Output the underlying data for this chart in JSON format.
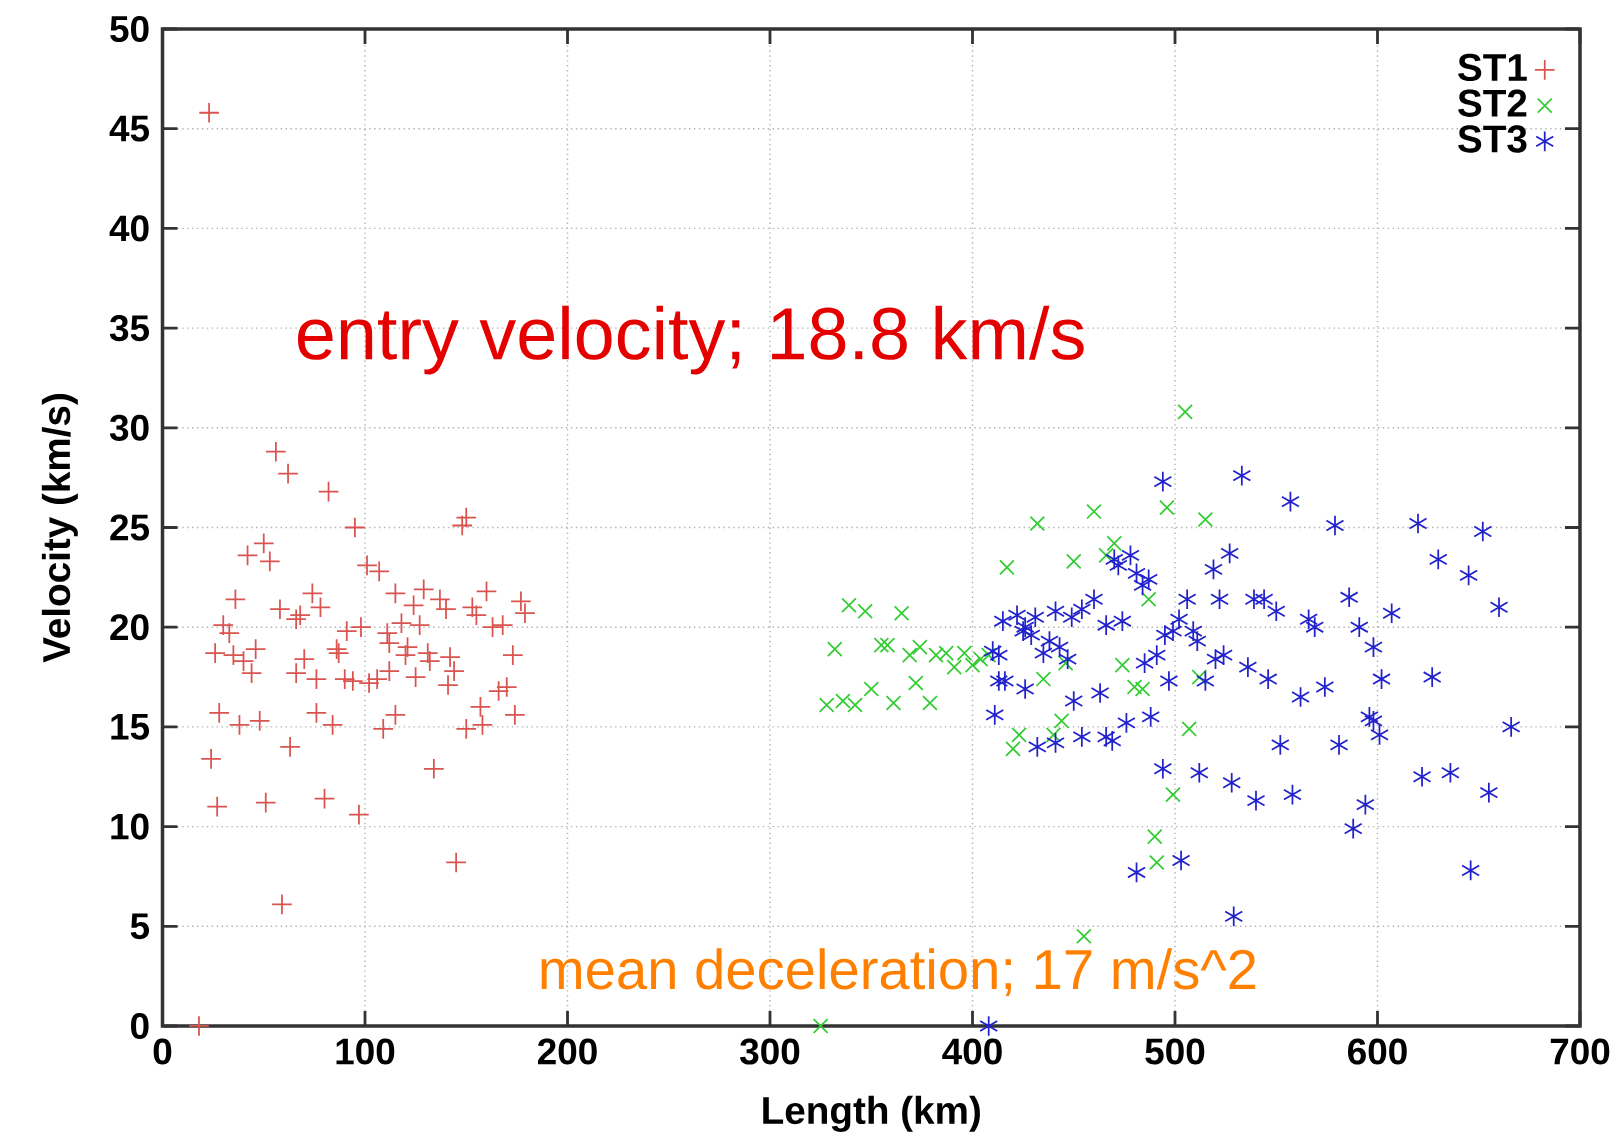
{
  "chart_data": {
    "type": "scatter",
    "xlabel": "Length (km)",
    "ylabel": "Velocity (km/s)",
    "xlim": [
      0,
      700
    ],
    "ylim": [
      0,
      50
    ],
    "xticks": [
      0,
      100,
      200,
      300,
      400,
      500,
      600,
      700
    ],
    "yticks": [
      0,
      5,
      10,
      15,
      20,
      25,
      30,
      35,
      40,
      45,
      50
    ],
    "grid": true,
    "legend": "top right",
    "annotations": [
      "entry velocity; 18.8 km/s",
      "mean deceleration; 17 m/s^2"
    ],
    "series": [
      {
        "name": "ST1",
        "color": "#d9534f",
        "x": [
          23,
          18,
          56,
          62,
          82,
          95,
          148,
          150,
          50,
          53,
          42,
          101,
          107,
          74,
          115,
          129,
          160,
          36,
          78,
          58,
          68,
          66,
          124,
          137,
          140,
          153,
          155,
          177,
          179,
          168,
          163,
          30,
          33,
          98,
          91,
          118,
          127,
          26,
          35,
          40,
          44,
          46,
          70,
          86,
          87,
          111,
          112,
          121,
          120,
          131,
          132,
          142,
          144,
          173,
          66,
          76,
          90,
          94,
          102,
          106,
          112,
          125,
          141,
          166,
          170,
          157,
          28,
          38,
          48,
          76,
          84,
          115,
          109,
          150,
          158,
          174,
          63,
          24,
          134,
          27,
          51,
          80,
          97,
          145,
          59
        ],
        "values": [
          45.8,
          0,
          28.8,
          27.7,
          26.8,
          25.0,
          25.1,
          25.5,
          24.2,
          23.3,
          23.6,
          23.1,
          22.8,
          21.7,
          21.7,
          21.9,
          21.8,
          21.4,
          21.0,
          20.9,
          20.6,
          20.4,
          21.1,
          21.4,
          20.9,
          21.0,
          20.6,
          21.3,
          20.7,
          20.1,
          20.0,
          20.1,
          19.7,
          20.0,
          19.8,
          20.2,
          20.1,
          18.7,
          18.6,
          18.3,
          17.7,
          18.9,
          18.4,
          18.9,
          18.7,
          19.7,
          19.2,
          19.0,
          18.6,
          18.7,
          18.3,
          18.5,
          17.8,
          18.6,
          17.7,
          17.4,
          17.4,
          17.3,
          17.2,
          17.4,
          17.8,
          17.5,
          17.1,
          16.8,
          17.0,
          16.0,
          15.7,
          15.1,
          15.3,
          15.7,
          15.1,
          15.6,
          14.9,
          14.9,
          15.1,
          15.6,
          14.0,
          13.4,
          12.9,
          11.0,
          11.2,
          11.4,
          10.6,
          8.2,
          6.1
        ]
      },
      {
        "name": "ST2",
        "color": "#33cc33",
        "x": [
          505,
          460,
          496,
          432,
          515,
          470,
          450,
          417,
          466,
          487,
          339,
          347,
          365,
          332,
          355,
          358,
          369,
          374,
          382,
          387,
          391,
          396,
          400,
          404,
          408,
          372,
          350,
          328,
          336,
          342,
          361,
          379,
          435,
          446,
          474,
          480,
          484,
          512,
          444,
          440,
          423,
          420,
          507,
          499,
          490,
          491,
          455,
          325
        ],
        "values": [
          30.8,
          25.8,
          26.0,
          25.2,
          25.4,
          24.2,
          23.3,
          23.0,
          23.6,
          21.4,
          21.1,
          20.8,
          20.7,
          18.9,
          19.1,
          19.1,
          18.6,
          19.0,
          18.6,
          18.7,
          18.0,
          18.7,
          18.1,
          18.4,
          18.6,
          17.2,
          16.9,
          16.1,
          16.3,
          16.1,
          16.2,
          16.2,
          17.4,
          18.2,
          18.1,
          17.0,
          16.9,
          17.5,
          15.3,
          14.6,
          14.6,
          13.9,
          14.9,
          11.6,
          9.5,
          8.2,
          4.5,
          0
        ]
      },
      {
        "name": "ST3",
        "color": "#2222cc",
        "x": [
          494,
          533,
          557,
          579,
          620,
          652,
          527,
          519,
          478,
          470,
          472,
          481,
          484,
          487,
          630,
          645,
          460,
          506,
          522,
          539,
          544,
          586,
          550,
          660,
          454,
          449,
          441,
          431,
          422,
          415,
          425,
          426,
          429,
          474,
          466,
          502,
          499,
          495,
          509,
          511,
          566,
          569,
          591,
          607,
          598,
          438,
          443,
          447,
          435,
          410,
          413,
          491,
          485,
          520,
          536,
          524,
          413,
          416,
          426,
          497,
          515,
          546,
          574,
          602,
          627,
          450,
          463,
          562,
          476,
          488,
          596,
          598,
          601,
          666,
          411,
          454,
          466,
          469,
          441,
          432,
          552,
          581,
          494,
          512,
          528,
          622,
          636,
          540,
          558,
          594,
          655,
          588,
          481,
          503,
          646,
          529,
          408
        ],
        "values": [
          27.3,
          27.6,
          26.3,
          25.1,
          25.2,
          24.8,
          23.7,
          22.9,
          23.6,
          23.4,
          23.1,
          22.7,
          22.1,
          22.4,
          23.4,
          22.6,
          21.4,
          21.4,
          21.4,
          21.4,
          21.4,
          21.5,
          20.8,
          21.0,
          20.9,
          20.5,
          20.8,
          20.5,
          20.6,
          20.3,
          19.8,
          20.0,
          19.6,
          20.3,
          20.1,
          20.4,
          19.8,
          19.6,
          19.8,
          19.3,
          20.4,
          20.0,
          20.0,
          20.7,
          19.0,
          19.3,
          19.0,
          18.4,
          18.7,
          18.8,
          18.6,
          18.6,
          18.2,
          18.4,
          18.0,
          18.6,
          17.3,
          17.3,
          16.9,
          17.3,
          17.3,
          17.4,
          17.0,
          17.4,
          17.5,
          16.3,
          16.7,
          16.5,
          15.2,
          15.5,
          15.5,
          15.3,
          14.6,
          15.0,
          15.6,
          14.5,
          14.5,
          14.3,
          14.2,
          14.0,
          14.1,
          14.1,
          12.9,
          12.7,
          12.2,
          12.5,
          12.7,
          11.3,
          11.6,
          11.1,
          11.7,
          9.9,
          7.7,
          8.3,
          7.8,
          5.5,
          0
        ]
      }
    ]
  }
}
